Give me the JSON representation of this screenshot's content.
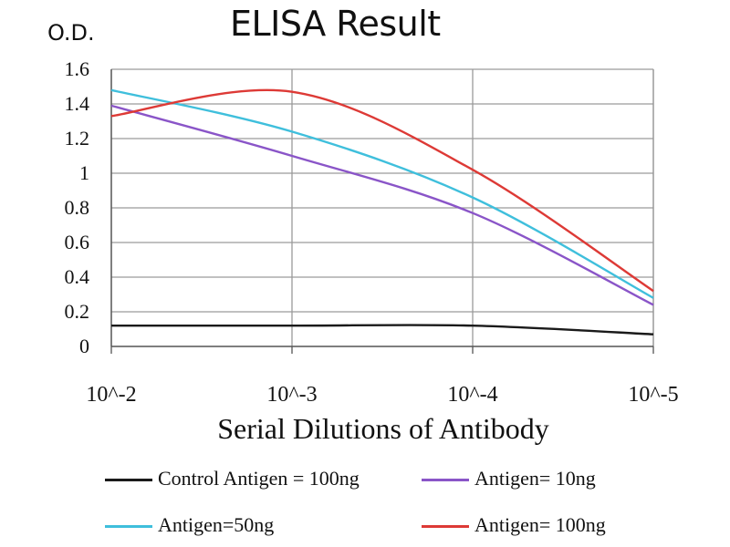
{
  "chart_data": {
    "type": "line",
    "title": "ELISA Result",
    "ylabel": "O.D.",
    "xlabel": "Serial Dilutions of Antibody",
    "categories": [
      "10^-2",
      "10^-3",
      "10^-4",
      "10^-5"
    ],
    "y_ticks": [
      "0",
      "0.2",
      "0.4",
      "0.6",
      "0.8",
      "1",
      "1.2",
      "1.4",
      "1.6"
    ],
    "ylim": [
      0,
      1.6
    ],
    "grid": true,
    "legend_position": "bottom",
    "series": [
      {
        "name": "Control Antigen = 100ng",
        "color": "#1a1a1a",
        "values": [
          0.12,
          0.12,
          0.12,
          0.07
        ]
      },
      {
        "name": "Antigen= 10ng",
        "color": "#8a55c8",
        "values": [
          1.39,
          1.1,
          0.77,
          0.24
        ]
      },
      {
        "name": "Antigen=50ng",
        "color": "#3fbfdc",
        "values": [
          1.48,
          1.24,
          0.86,
          0.28
        ]
      },
      {
        "name": "Antigen= 100ng",
        "color": "#dd3a36",
        "values": [
          1.33,
          1.47,
          1.02,
          0.32
        ]
      }
    ]
  }
}
